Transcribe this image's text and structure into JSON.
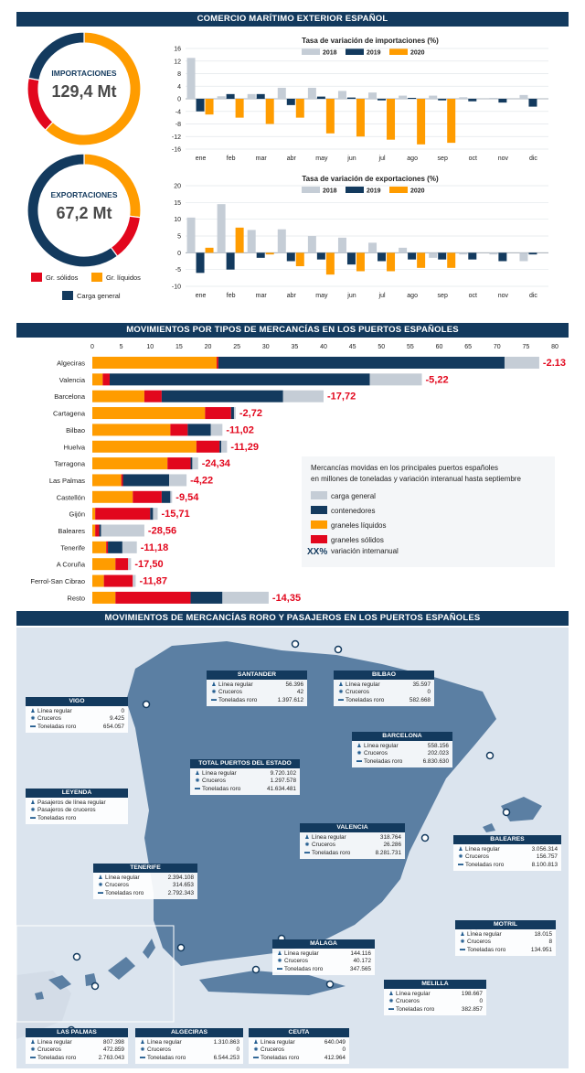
{
  "section_titles": {
    "comercio": "COMERCIO MARÍTIMO EXTERIOR ESPAÑOL",
    "movimientos": "MOVIMIENTOS POR TIPOS DE MERCANCÍAS EN LOS PUERTOS ESPAÑOLES",
    "roro": "MOVIMIENTOS DE MERCANCÍAS RORO Y PASAJEROS EN LOS PUERTOS ESPAÑOLES"
  },
  "colors": {
    "navy": "#133a5e",
    "orange": "#ff9c00",
    "red": "#e2071d",
    "gray": "#c5cdd6",
    "map_land": "#5b7fa3",
    "map_sea": "#dbe4ee"
  },
  "chart_data": [
    {
      "type": "pie",
      "label": "IMPORTACIONES",
      "total": "129,4 Mt",
      "slices": [
        {
          "name": "Gr. líquidos",
          "value": 62
        },
        {
          "name": "Gr. sólidos",
          "value": 16
        },
        {
          "name": "Carga general",
          "value": 22
        }
      ]
    },
    {
      "type": "pie",
      "label": "EXPORTACIONES",
      "total": "67,2 Mt",
      "slices": [
        {
          "name": "Gr. líquidos",
          "value": 27
        },
        {
          "name": "Gr. sólidos",
          "value": 13
        },
        {
          "name": "Carga general",
          "value": 60
        }
      ]
    },
    {
      "type": "bar",
      "title": "Tasa de variación de importaciones (%)",
      "categories": [
        "ene",
        "feb",
        "mar",
        "abr",
        "may",
        "jun",
        "jul",
        "ago",
        "sep",
        "oct",
        "nov",
        "dic"
      ],
      "yticks": [
        "16",
        "12",
        "8",
        "4",
        "0",
        "-4",
        "-8",
        "-12",
        "-16"
      ],
      "ylim": [
        -16,
        16
      ],
      "series": [
        {
          "name": "2018",
          "values": [
            13,
            0.8,
            1.5,
            3.5,
            3.5,
            2.5,
            2,
            1,
            1,
            0.5,
            0.3,
            1.2
          ]
        },
        {
          "name": "2019",
          "values": [
            -4,
            1.5,
            1.5,
            -2,
            0.7,
            0.4,
            -0.5,
            0.3,
            -0.5,
            -0.8,
            -1.2,
            -2.5
          ]
        },
        {
          "name": "2020",
          "values": [
            -5,
            -6,
            -8,
            -6,
            -11,
            -12,
            -13,
            -14.5,
            -14,
            null,
            null,
            null
          ]
        }
      ]
    },
    {
      "type": "bar",
      "title": "Tasa de variación de exportaciones (%)",
      "categories": [
        "ene",
        "feb",
        "mar",
        "abr",
        "may",
        "jun",
        "jul",
        "ago",
        "sep",
        "oct",
        "nov",
        "dic"
      ],
      "yticks": [
        "20",
        "15",
        "10",
        "5",
        "0",
        "-5",
        "-10"
      ],
      "ylim": [
        -10,
        20
      ],
      "series": [
        {
          "name": "2018",
          "values": [
            10.5,
            14.5,
            6.8,
            7,
            5,
            4.5,
            3,
            1.5,
            -1.5,
            -0.5,
            -0.5,
            -2.5
          ]
        },
        {
          "name": "2019",
          "values": [
            -6,
            -5,
            -1.5,
            -2.5,
            -2,
            -3.5,
            -2.5,
            -2,
            -2,
            -2,
            -2.5,
            -0.5
          ]
        },
        {
          "name": "2020",
          "values": [
            1.5,
            7.5,
            -0.5,
            -4,
            -6.5,
            -5.5,
            -5.5,
            -4.5,
            -4.5,
            null,
            null,
            null
          ]
        }
      ]
    },
    {
      "type": "bar",
      "orientation": "horizontal-stacked",
      "xticks": [
        "0",
        "5",
        "10",
        "15",
        "20",
        "25",
        "30",
        "35",
        "40",
        "45",
        "50",
        "55",
        "60",
        "65",
        "70",
        "75",
        "80"
      ],
      "xlim": [
        0,
        80
      ],
      "legend_title": "Mercancías movidas en los principales puertos españoles en millones de toneladas y variación interanual hasta septiembre",
      "series_names": [
        "graneles líquidos",
        "graneles sólidos",
        "contenedores",
        "carga general"
      ],
      "legend_order": [
        "carga general",
        "contenedores",
        "graneles líquidos",
        "graneles sólidos"
      ],
      "legend_xx": "XX%",
      "legend_xx_label": "variación internanual",
      "rows": [
        {
          "port": "Algeciras",
          "values": [
            21.5,
            0.3,
            49.5,
            6
          ],
          "change": "-2.13"
        },
        {
          "port": "Valencia",
          "values": [
            1.8,
            1.2,
            45,
            9
          ],
          "change": "-5,22"
        },
        {
          "port": "Barcelona",
          "values": [
            9,
            3,
            21,
            7
          ],
          "change": "-17,72"
        },
        {
          "port": "Cartagena",
          "values": [
            19.5,
            4.5,
            0.5,
            0.3
          ],
          "change": "-2,72"
        },
        {
          "port": "Bilbao",
          "values": [
            13.5,
            3,
            4,
            2
          ],
          "change": "-11,02"
        },
        {
          "port": "Huelva",
          "values": [
            18,
            4,
            0.3,
            1
          ],
          "change": "-11,29"
        },
        {
          "port": "Tarragona",
          "values": [
            13,
            4,
            0.3,
            1
          ],
          "change": "-24,34"
        },
        {
          "port": "Las Palmas",
          "values": [
            5,
            0.3,
            8,
            3
          ],
          "change": "-4,22"
        },
        {
          "port": "Castellón",
          "values": [
            7,
            5,
            1.5,
            0.3
          ],
          "change": "-9,54"
        },
        {
          "port": "Gijón",
          "values": [
            0.5,
            9.5,
            0.5,
            0.8
          ],
          "change": "-15,71"
        },
        {
          "port": "Baleares",
          "values": [
            0.5,
            0.7,
            0.3,
            7.5
          ],
          "change": "-28,56"
        },
        {
          "port": "Tenerife",
          "values": [
            2.4,
            0.3,
            2.5,
            2.5
          ],
          "change": "-11,18"
        },
        {
          "port": "A Coruña",
          "values": [
            4,
            2.2,
            0,
            0.5
          ],
          "change": "-17,50"
        },
        {
          "port": "Ferrol-San Cibrao",
          "values": [
            2,
            5,
            0,
            0.5
          ],
          "change": "-11,87"
        },
        {
          "port": "Resto",
          "values": [
            4,
            13,
            5.5,
            8
          ],
          "change": "-14,35"
        }
      ]
    }
  ],
  "pie_legend": [
    {
      "label": "Gr. sólidos",
      "color": "#e2071d"
    },
    {
      "label": "Gr. líquidos",
      "color": "#ff9c00"
    },
    {
      "label": "Carga general",
      "color": "#133a5e"
    }
  ],
  "map": {
    "row_labels": {
      "regular": "Línea regular",
      "cruceros": "Cruceros",
      "toneladas": "Toneladas roro"
    },
    "legend": {
      "title": "LEYENDA",
      "items": [
        "Pasajeros de línea regular",
        "Pasajeros de cruceros",
        "Toneladas roro"
      ]
    },
    "ports": [
      {
        "name": "SANTANDER",
        "regular": "56.396",
        "cruceros": "42",
        "toneladas": "1.397.612"
      },
      {
        "name": "BILBAO",
        "regular": "35.597",
        "cruceros": "0",
        "toneladas": "582.668"
      },
      {
        "name": "VIGO",
        "regular": "0",
        "cruceros": "9.425",
        "toneladas": "654.057"
      },
      {
        "name": "BARCELONA",
        "regular": "558.156",
        "cruceros": "202.023",
        "toneladas": "6.830.630"
      },
      {
        "name": "TOTAL PUERTOS DEL ESTADO",
        "regular": "9.720.102",
        "cruceros": "1.297.578",
        "toneladas": "41.634.481"
      },
      {
        "name": "VALENCIA",
        "regular": "318.764",
        "cruceros": "26.286",
        "toneladas": "8.281.731"
      },
      {
        "name": "BALEARES",
        "regular": "3.056.314",
        "cruceros": "156.757",
        "toneladas": "8.100.813"
      },
      {
        "name": "TENERIFE",
        "regular": "2.394.108",
        "cruceros": "314.653",
        "toneladas": "2.792.343"
      },
      {
        "name": "MOTRIL",
        "regular": "18.015",
        "cruceros": "8",
        "toneladas": "134.951"
      },
      {
        "name": "MÁLAGA",
        "regular": "144.116",
        "cruceros": "40.172",
        "toneladas": "347.565"
      },
      {
        "name": "MELILLA",
        "regular": "198.667",
        "cruceros": "0",
        "toneladas": "382.857"
      },
      {
        "name": "LAS PALMAS",
        "regular": "807.398",
        "cruceros": "472.859",
        "toneladas": "2.763.043"
      },
      {
        "name": "ALGECIRAS",
        "regular": "1.310.863",
        "cruceros": "0",
        "toneladas": "6.544.253"
      },
      {
        "name": "CEUTA",
        "regular": "640.049",
        "cruceros": "0",
        "toneladas": "412.964"
      }
    ]
  }
}
